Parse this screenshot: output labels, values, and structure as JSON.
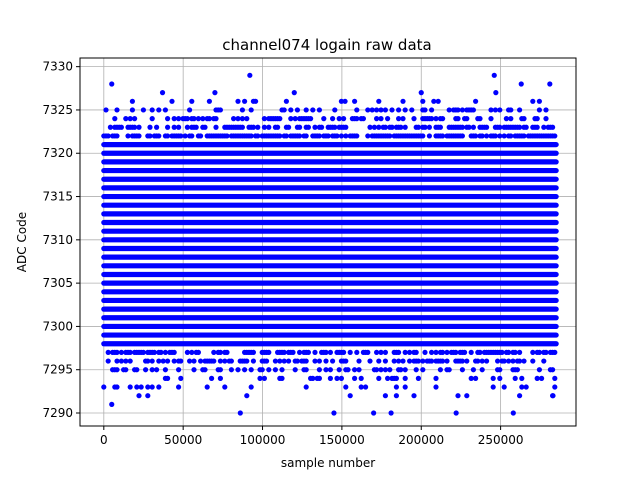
{
  "chart_data": {
    "type": "scatter",
    "title": "channel074 logain raw data",
    "xlabel": "sample number",
    "ylabel": "ADC Code",
    "xlim": [
      -15000,
      297500
    ],
    "ylim": [
      7288.5,
      7331
    ],
    "xticks": [
      0,
      50000,
      100000,
      150000,
      200000,
      250000
    ],
    "yticks": [
      7290,
      7295,
      7300,
      7305,
      7310,
      7315,
      7320,
      7325,
      7330
    ],
    "grid": true,
    "marker_color": "#0000ff",
    "x_range": [
      0,
      285000
    ],
    "dense_band": [
      7298,
      7321
    ],
    "sparse_outliers": [
      {
        "x": 5000,
        "y": 7328
      },
      {
        "x": 5000,
        "y": 7291
      },
      {
        "x": 37000,
        "y": 7327
      },
      {
        "x": 70000,
        "y": 7327
      },
      {
        "x": 86000,
        "y": 7290
      },
      {
        "x": 92000,
        "y": 7329
      },
      {
        "x": 120000,
        "y": 7327
      },
      {
        "x": 145000,
        "y": 7290
      },
      {
        "x": 152000,
        "y": 7326
      },
      {
        "x": 170000,
        "y": 7290
      },
      {
        "x": 181000,
        "y": 7290
      },
      {
        "x": 200000,
        "y": 7327
      },
      {
        "x": 222000,
        "y": 7290
      },
      {
        "x": 246000,
        "y": 7329
      },
      {
        "x": 247000,
        "y": 7327
      },
      {
        "x": 258000,
        "y": 7290
      },
      {
        "x": 263000,
        "y": 7328
      },
      {
        "x": 281000,
        "y": 7328
      },
      {
        "x": 283000,
        "y": 7292
      }
    ],
    "upper_outlier_levels": [
      7322,
      7323,
      7324,
      7325,
      7326
    ],
    "lower_outlier_levels": [
      7292,
      7293,
      7294,
      7295,
      7296,
      7297
    ]
  }
}
